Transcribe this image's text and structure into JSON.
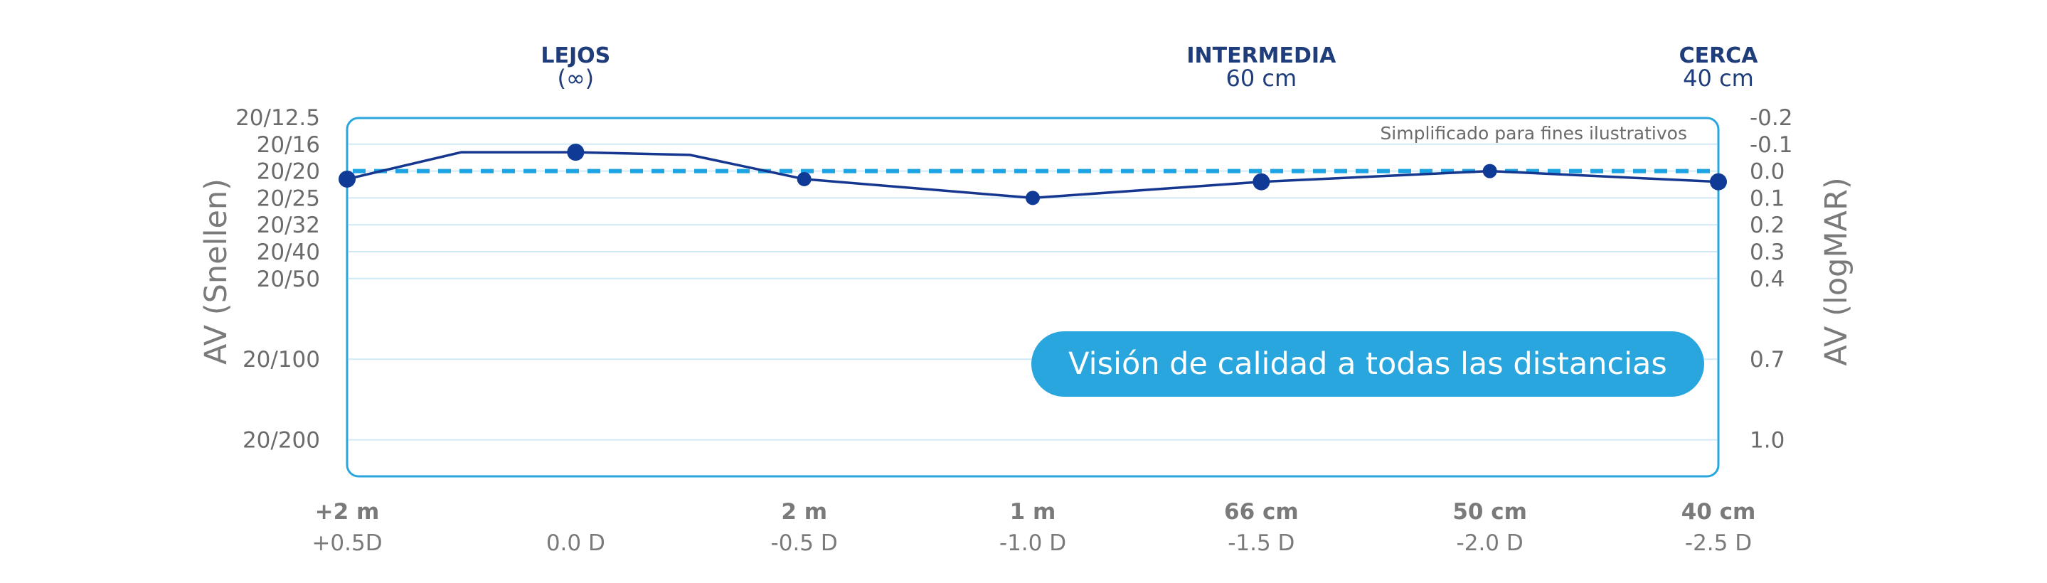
{
  "chart_data": {
    "type": "line",
    "note": "Simplificado para fines ilustrativos",
    "badge": "Visión de calidad a todas las distancias",
    "left_axis_title": "AV (Snellen)",
    "right_axis_title": "AV (logMAR)",
    "ylim": [
      1.1,
      -0.22
    ],
    "y_ticks": [
      {
        "logmar": -0.2,
        "snellen": "20/12.5",
        "right": "-0.2"
      },
      {
        "logmar": -0.1,
        "snellen": "20/16",
        "right": "-0.1"
      },
      {
        "logmar": 0.0,
        "snellen": "20/20",
        "right": "0.0"
      },
      {
        "logmar": 0.1,
        "snellen": "20/25",
        "right": "0.1"
      },
      {
        "logmar": 0.2,
        "snellen": "20/32",
        "right": "0.2"
      },
      {
        "logmar": 0.3,
        "snellen": "20/40",
        "right": "0.3"
      },
      {
        "logmar": 0.4,
        "snellen": "20/50",
        "right": "0.4"
      },
      {
        "logmar": 0.7,
        "snellen": "20/100",
        "right": "0.7"
      },
      {
        "logmar": 1.0,
        "snellen": "20/200",
        "right": "1.0"
      }
    ],
    "xlim": [
      0.5,
      -2.5
    ],
    "x_ticks": [
      {
        "defocus": 0.5,
        "top": "+2 m",
        "bottom": "+0.5D"
      },
      {
        "defocus": 0.0,
        "top": "",
        "bottom": "0.0 D"
      },
      {
        "defocus": -0.5,
        "top": "2 m",
        "bottom": "-0.5 D"
      },
      {
        "defocus": -1.0,
        "top": "1 m",
        "bottom": "-1.0 D"
      },
      {
        "defocus": -1.5,
        "top": "66 cm",
        "bottom": "-1.5 D"
      },
      {
        "defocus": -2.0,
        "top": "50 cm",
        "bottom": "-2.0 D"
      },
      {
        "defocus": -2.5,
        "top": "40 cm",
        "bottom": "-2.5 D"
      }
    ],
    "zones": [
      {
        "name": "LEJOS",
        "sub": "(∞)",
        "defocus": 0.0
      },
      {
        "name": "INTERMEDIA",
        "sub": "60 cm",
        "defocus": -1.5
      },
      {
        "name": "CERCA",
        "sub": "40 cm",
        "defocus": -2.5
      }
    ],
    "reference_logmar": 0.0,
    "series": [
      {
        "x": [
          0.5,
          0.25,
          0.0,
          -0.25,
          -0.5,
          -1.0,
          -1.5,
          -2.0,
          -2.5
        ],
        "y": [
          0.03,
          -0.07,
          -0.07,
          -0.06,
          0.03,
          0.1,
          0.04,
          0.0,
          0.04
        ],
        "markers": [
          true,
          false,
          true,
          false,
          true,
          true,
          true,
          true,
          true
        ],
        "marker_size": [
          "large",
          "none",
          "large",
          "none",
          "medium",
          "medium",
          "large",
          "medium",
          "large"
        ]
      }
    ]
  }
}
